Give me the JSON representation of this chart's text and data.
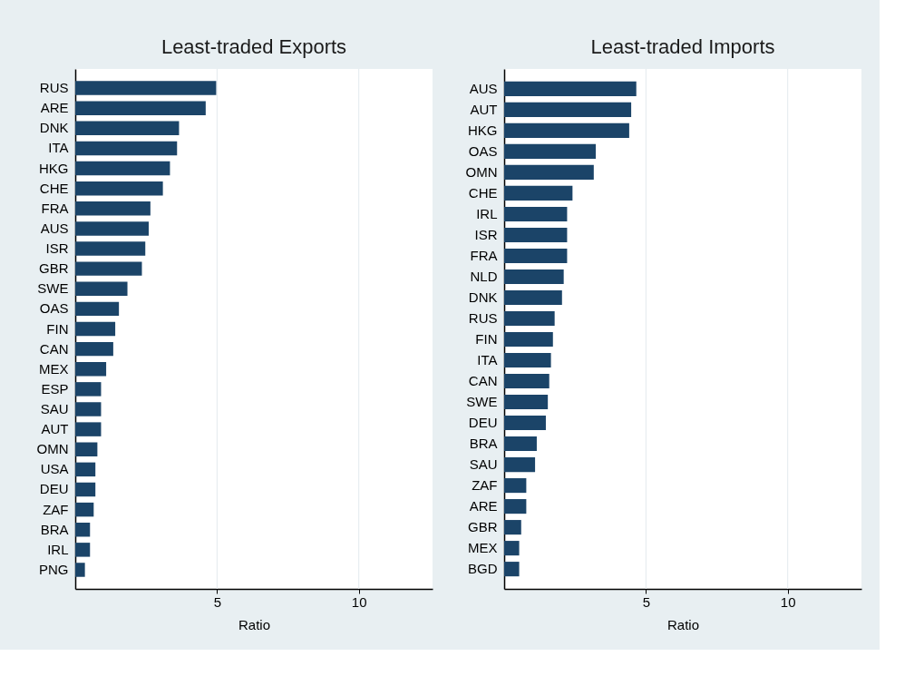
{
  "chart_data": [
    {
      "type": "bar",
      "orientation": "horizontal",
      "title": "Least-traded Exports",
      "xlabel": "Ratio",
      "color": "#1b4468",
      "grid": "x",
      "categories": [
        "RUS",
        "ARE",
        "DNK",
        "ITA",
        "HKG",
        "CHE",
        "FRA",
        "AUS",
        "ISR",
        "GBR",
        "SWE",
        "OAS",
        "FIN",
        "CAN",
        "MEX",
        "ESP",
        "SAU",
        "AUT",
        "OMN",
        "USA",
        "DEU",
        "ZAF",
        "BRA",
        "IRL",
        "PNG"
      ],
      "values": [
        4.97,
        4.6,
        3.66,
        3.59,
        3.34,
        3.09,
        2.65,
        2.59,
        2.47,
        2.35,
        1.84,
        1.54,
        1.41,
        1.34,
        1.09,
        0.91,
        0.91,
        0.91,
        0.78,
        0.71,
        0.71,
        0.65,
        0.52,
        0.52,
        0.34
      ],
      "xlim": [
        0,
        12.6
      ],
      "xticks": [
        5,
        10
      ]
    },
    {
      "type": "bar",
      "orientation": "horizontal",
      "title": "Least-traded Imports",
      "xlabel": "Ratio",
      "color": "#1b4468",
      "grid": "x",
      "categories": [
        "AUS",
        "AUT",
        "HKG",
        "OAS",
        "OMN",
        "CHE",
        "IRL",
        "ISR",
        "FRA",
        "NLD",
        "DNK",
        "RUS",
        "FIN",
        "ITA",
        "CAN",
        "SWE",
        "DEU",
        "BRA",
        "SAU",
        "ZAF",
        "ARE",
        "GBR",
        "MEX",
        "BGD"
      ],
      "values": [
        4.66,
        4.48,
        4.41,
        3.23,
        3.16,
        2.41,
        2.22,
        2.22,
        2.22,
        2.1,
        2.04,
        1.78,
        1.72,
        1.65,
        1.59,
        1.54,
        1.47,
        1.15,
        1.09,
        0.78,
        0.78,
        0.6,
        0.53,
        0.53
      ],
      "xlim": [
        0,
        12.6
      ],
      "xticks": [
        5,
        10
      ]
    }
  ]
}
